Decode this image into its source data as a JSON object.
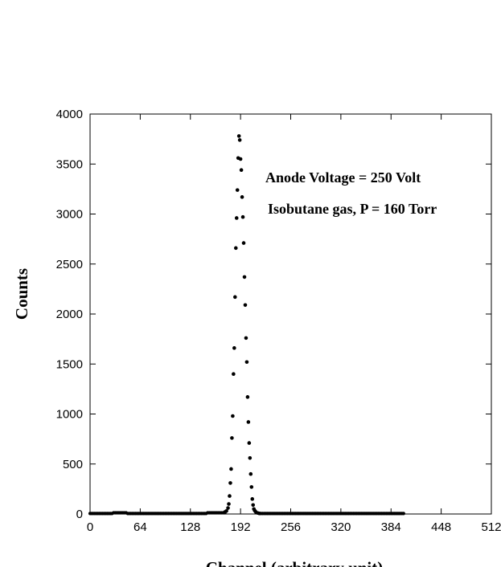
{
  "chart_data": {
    "type": "scatter",
    "title": "",
    "xlabel": "Channel (arbitrary unit)",
    "ylabel": "Counts",
    "xlim": [
      0,
      512
    ],
    "ylim": [
      0,
      4000
    ],
    "xticks": [
      0,
      64,
      128,
      192,
      256,
      320,
      384,
      448,
      512
    ],
    "yticks": [
      0,
      500,
      1000,
      1500,
      2000,
      2500,
      3000,
      3500,
      4000
    ],
    "grid": false,
    "legend": "none",
    "marker_color": "#000000",
    "annotations": [
      "Anode Voltage = 250 Volt",
      "Isobutane gas, P = 160 Torr"
    ],
    "baseline": {
      "x_start": 0,
      "x_end": 400,
      "step": 2,
      "value": 5,
      "bumps": [
        {
          "x_from": 30,
          "x_to": 46,
          "value": 12
        },
        {
          "x_from": 150,
          "x_to": 172,
          "value": 12
        }
      ]
    },
    "series": [
      {
        "x": [
          172,
          174,
          176,
          177,
          178,
          179,
          180,
          181,
          182,
          183,
          184,
          185,
          186,
          187,
          188,
          189,
          190,
          191,
          192,
          193,
          194,
          195,
          196,
          197,
          198,
          199,
          200,
          201,
          202,
          203,
          204,
          205,
          206,
          207,
          208,
          209,
          210,
          211,
          212,
          214,
          216
        ],
        "y": [
          20,
          30,
          60,
          100,
          180,
          310,
          450,
          760,
          980,
          1400,
          1660,
          2170,
          2660,
          2960,
          3240,
          3560,
          3780,
          3740,
          3550,
          3440,
          3170,
          2970,
          2710,
          2370,
          2090,
          1760,
          1520,
          1170,
          920,
          710,
          560,
          400,
          270,
          150,
          90,
          50,
          35,
          25,
          15,
          10,
          6
        ]
      }
    ]
  }
}
